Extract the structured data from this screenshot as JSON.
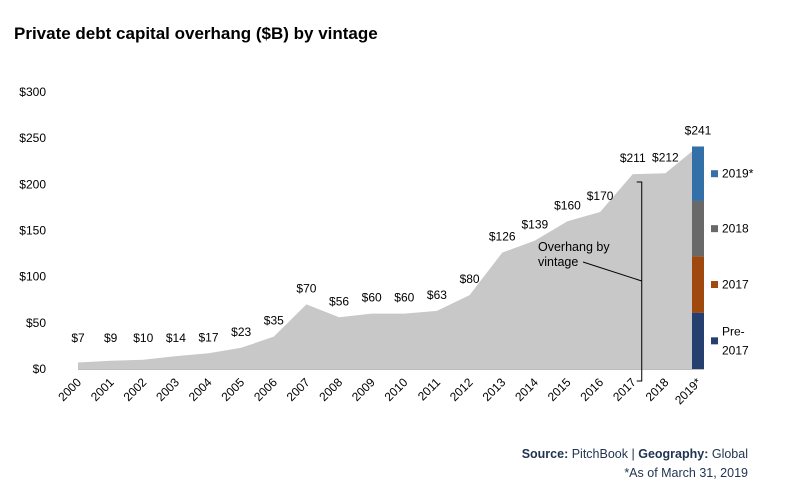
{
  "chart_data": {
    "type": "area",
    "title": "Private debt capital overhang ($B) by vintage",
    "categories": [
      "2000",
      "2001",
      "2002",
      "2003",
      "2004",
      "2005",
      "2006",
      "2007",
      "2008",
      "2009",
      "2010",
      "2011",
      "2012",
      "2013",
      "2014",
      "2015",
      "2016",
      "2017",
      "2018",
      "2019*"
    ],
    "values": [
      7,
      9,
      10,
      14,
      17,
      23,
      35,
      70,
      56,
      60,
      60,
      63,
      80,
      126,
      139,
      160,
      170,
      211,
      212,
      241
    ],
    "data_labels": [
      "$7",
      "$9",
      "$10",
      "$14",
      "$17",
      "$23",
      "$35",
      "$70",
      "$56",
      "$60",
      "$60",
      "$63",
      "$80",
      "$126",
      "$139",
      "$160",
      "$170",
      "$211",
      "$212",
      "$241"
    ],
    "ylim": [
      0,
      300
    ],
    "yticks": [
      0,
      50,
      100,
      150,
      200,
      250,
      300
    ],
    "ytick_labels": [
      "$0",
      "$50",
      "$100",
      "$150",
      "$200",
      "$250",
      "$300"
    ],
    "area_color": "#c8c8c8",
    "grid": false,
    "stacked_bar": {
      "category": "2019*",
      "total": 241,
      "segments": [
        {
          "name": "Pre-2017",
          "legend_lines": [
            "Pre-",
            "2017"
          ],
          "value": 61,
          "color": "#253f6f"
        },
        {
          "name": "2017",
          "legend_lines": [
            "2017"
          ],
          "value": 61,
          "color": "#a0490f"
        },
        {
          "name": "2018",
          "legend_lines": [
            "2018"
          ],
          "value": 60,
          "color": "#696969"
        },
        {
          "name": "2019*",
          "legend_lines": [
            "2019*"
          ],
          "value": 59,
          "color": "#3370a7"
        }
      ]
    },
    "annotation": {
      "lines": [
        "Overhang by",
        "vintage"
      ],
      "bracket_from": "2017",
      "bracket_to": "2018"
    }
  },
  "footer": {
    "source_label": "Source:",
    "source_value": "PitchBook",
    "separator": "|",
    "geography_label": "Geography:",
    "geography_value": "Global",
    "note": "*As of March 31, 2019"
  }
}
